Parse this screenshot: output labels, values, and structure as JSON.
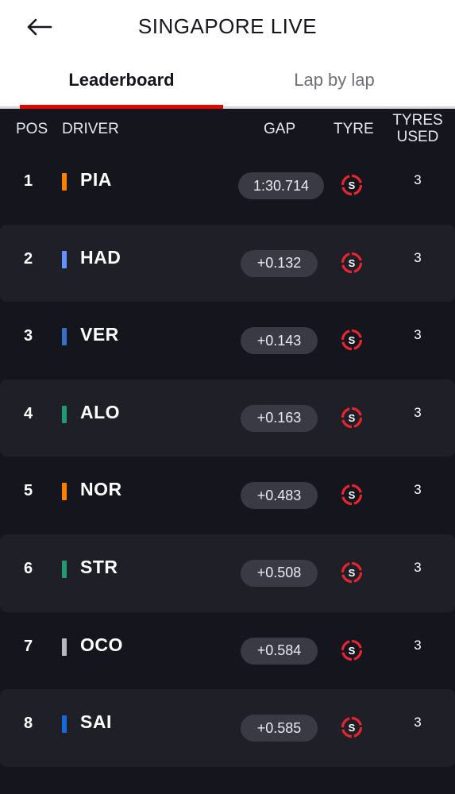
{
  "header": {
    "title": "SINGAPORE LIVE"
  },
  "tabs": [
    {
      "label": "Leaderboard"
    },
    {
      "label": "Lap by lap"
    }
  ],
  "columns": {
    "pos": "POS",
    "driver": "DRIVER",
    "gap": "GAP",
    "tyre": "TYRE",
    "tyres_used": "TYRES USED"
  },
  "rows": [
    {
      "pos": "1",
      "driver": "PIA",
      "team_color": "#ff8000",
      "gap": "1:30.714",
      "tyre": "S",
      "tyres_used": "3"
    },
    {
      "pos": "2",
      "driver": "HAD",
      "team_color": "#6692ff",
      "gap": "+0.132",
      "tyre": "S",
      "tyres_used": "3"
    },
    {
      "pos": "3",
      "driver": "VER",
      "team_color": "#3671c6",
      "gap": "+0.143",
      "tyre": "S",
      "tyres_used": "3"
    },
    {
      "pos": "4",
      "driver": "ALO",
      "team_color": "#229971",
      "gap": "+0.163",
      "tyre": "S",
      "tyres_used": "3"
    },
    {
      "pos": "5",
      "driver": "NOR",
      "team_color": "#ff8000",
      "gap": "+0.483",
      "tyre": "S",
      "tyres_used": "3"
    },
    {
      "pos": "6",
      "driver": "STR",
      "team_color": "#229971",
      "gap": "+0.508",
      "tyre": "S",
      "tyres_used": "3"
    },
    {
      "pos": "7",
      "driver": "OCO",
      "team_color": "#b6babd",
      "gap": "+0.584",
      "tyre": "S",
      "tyres_used": "3"
    },
    {
      "pos": "8",
      "driver": "SAI",
      "team_color": "#1868db",
      "gap": "+0.585",
      "tyre": "S",
      "tyres_used": "3"
    }
  ],
  "colors": {
    "accent": "#e10600",
    "background": "#15151e",
    "row_alt": "#1f1f27",
    "soft_tyre": "#e8252e"
  },
  "icons": {
    "back": "arrow-left-icon",
    "tyre": "soft-tyre-icon"
  }
}
